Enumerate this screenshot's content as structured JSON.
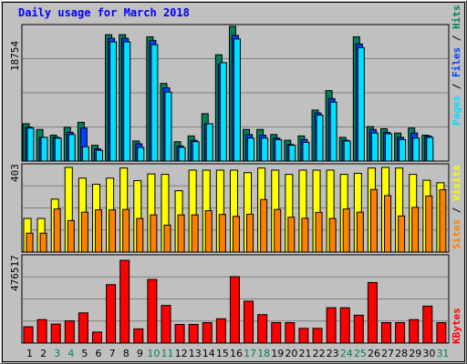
{
  "title": "Daily usage for March 2018",
  "colors": {
    "background": "#c0c0c0",
    "plot_area": "#c0c0c0",
    "title_text": "#0000ff",
    "grid": "#7f7f7f",
    "hits": "#00805c",
    "files": "#0040ff",
    "pages": "#00e0ff",
    "visits": "#ffff00",
    "sites": "#ff8000",
    "kbytes": "#ff0000",
    "weekend_label": "#00805c",
    "weekday_label": "#000000"
  },
  "panels": {
    "top": {
      "max_label": "18754",
      "legend": {
        "pages": "Pages",
        "sep1": "/",
        "files": "Files",
        "sep2": "/",
        "hits": "Hits"
      }
    },
    "middle": {
      "max_label": "403",
      "legend": {
        "sites": "Sites",
        "sep": "/",
        "visits": "Visits"
      }
    },
    "bottom": {
      "max_label": "476517",
      "legend": {
        "kbytes": "KBytes"
      }
    }
  },
  "day_labels": [
    "1",
    "2",
    "3",
    "4",
    "5",
    "6",
    "7",
    "8",
    "9",
    "10",
    "11",
    "12",
    "13",
    "14",
    "15",
    "16",
    "17",
    "18",
    "19",
    "20",
    "21",
    "22",
    "23",
    "24",
    "25",
    "26",
    "27",
    "28",
    "29",
    "30",
    "31"
  ],
  "weekend_days": [
    3,
    4,
    10,
    11,
    17,
    18,
    24,
    25,
    31
  ],
  "chart_data": [
    {
      "type": "bar",
      "name": "usage",
      "categories": [
        "1",
        "2",
        "3",
        "4",
        "5",
        "6",
        "7",
        "8",
        "9",
        "10",
        "11",
        "12",
        "13",
        "14",
        "15",
        "16",
        "17",
        "18",
        "19",
        "20",
        "21",
        "22",
        "23",
        "24",
        "25",
        "26",
        "27",
        "28",
        "29",
        "30",
        "31"
      ],
      "ylim": [
        0,
        18754
      ],
      "series": [
        {
          "name": "Hits",
          "values": [
            5200,
            4400,
            3600,
            4700,
            5400,
            2200,
            17600,
            17600,
            2800,
            17300,
            10800,
            2700,
            3500,
            6600,
            14800,
            18754,
            4400,
            4400,
            3700,
            2900,
            3500,
            7100,
            9800,
            3300,
            17300,
            4800,
            4500,
            3900,
            4600,
            3600,
            0
          ]
        },
        {
          "name": "Files",
          "values": [
            4700,
            3300,
            3300,
            4000,
            4600,
            1700,
            17100,
            17100,
            2400,
            16800,
            10200,
            2100,
            2900,
            5200,
            13500,
            17500,
            3700,
            3600,
            3200,
            2300,
            3000,
            6700,
            8700,
            2900,
            16300,
            4400,
            4000,
            3300,
            3900,
            3500,
            0
          ]
        },
        {
          "name": "Pages",
          "values": [
            4600,
            3300,
            3200,
            3700,
            2000,
            1500,
            16600,
            16600,
            1900,
            16200,
            9600,
            1900,
            2700,
            5200,
            13700,
            17000,
            3200,
            3200,
            3000,
            2200,
            2600,
            6400,
            8200,
            2800,
            15800,
            3900,
            3800,
            3000,
            3200,
            3300,
            0
          ]
        }
      ]
    },
    {
      "type": "bar",
      "name": "visitors",
      "categories": [
        "1",
        "2",
        "3",
        "4",
        "5",
        "6",
        "7",
        "8",
        "9",
        "10",
        "11",
        "12",
        "13",
        "14",
        "15",
        "16",
        "17",
        "18",
        "19",
        "20",
        "21",
        "22",
        "23",
        "24",
        "25",
        "26",
        "27",
        "28",
        "29",
        "30",
        "31"
      ],
      "ylim": [
        0,
        403
      ],
      "series": [
        {
          "name": "Visits",
          "values": [
            160,
            160,
            252,
            403,
            352,
            323,
            352,
            400,
            340,
            372,
            370,
            292,
            390,
            390,
            390,
            390,
            378,
            400,
            390,
            370,
            390,
            390,
            390,
            370,
            375,
            400,
            403,
            400,
            370,
            342,
            330
          ]
        },
        {
          "name": "Sites",
          "values": [
            90,
            90,
            205,
            150,
            190,
            201,
            201,
            203,
            160,
            177,
            128,
            177,
            177,
            197,
            179,
            170,
            180,
            250,
            203,
            166,
            161,
            189,
            160,
            205,
            190,
            298,
            269,
            172,
            213,
            267,
            297
          ]
        }
      ]
    },
    {
      "type": "bar",
      "name": "kbytes",
      "categories": [
        "1",
        "2",
        "3",
        "4",
        "5",
        "6",
        "7",
        "8",
        "9",
        "10",
        "11",
        "12",
        "13",
        "14",
        "15",
        "16",
        "17",
        "18",
        "19",
        "20",
        "21",
        "22",
        "23",
        "24",
        "25",
        "26",
        "27",
        "28",
        "29",
        "30",
        "31"
      ],
      "ylim": [
        0,
        476517
      ],
      "series": [
        {
          "name": "KBytes",
          "values": [
            92000,
            132000,
            107000,
            125000,
            170000,
            62000,
            329000,
            466000,
            80000,
            358000,
            212000,
            105000,
            105000,
            115000,
            137000,
            374000,
            236000,
            160000,
            115000,
            115000,
            83000,
            83000,
            199000,
            199000,
            157000,
            341000,
            115000,
            115000,
            132000,
            208000,
            115000
          ]
        }
      ]
    }
  ]
}
